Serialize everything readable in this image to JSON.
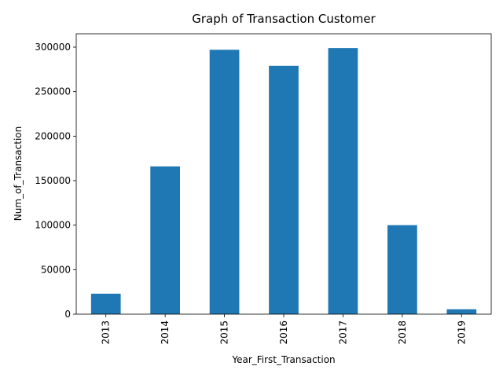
{
  "chart_data": {
    "type": "bar",
    "title": "Graph of Transaction Customer",
    "xlabel": "Year_First_Transaction",
    "ylabel": "Num_of_Transaction",
    "categories": [
      "2013",
      "2014",
      "2015",
      "2016",
      "2017",
      "2018",
      "2019"
    ],
    "values": [
      23000,
      166000,
      297000,
      279000,
      299000,
      100000,
      5500
    ],
    "ylim": [
      0,
      315000
    ],
    "yticks": [
      0,
      50000,
      100000,
      150000,
      200000,
      250000,
      300000
    ],
    "ytick_labels": [
      "0",
      "50000",
      "100000",
      "150000",
      "200000",
      "250000",
      "300000"
    ],
    "grid": false,
    "bar_color": "#1f77b4"
  }
}
